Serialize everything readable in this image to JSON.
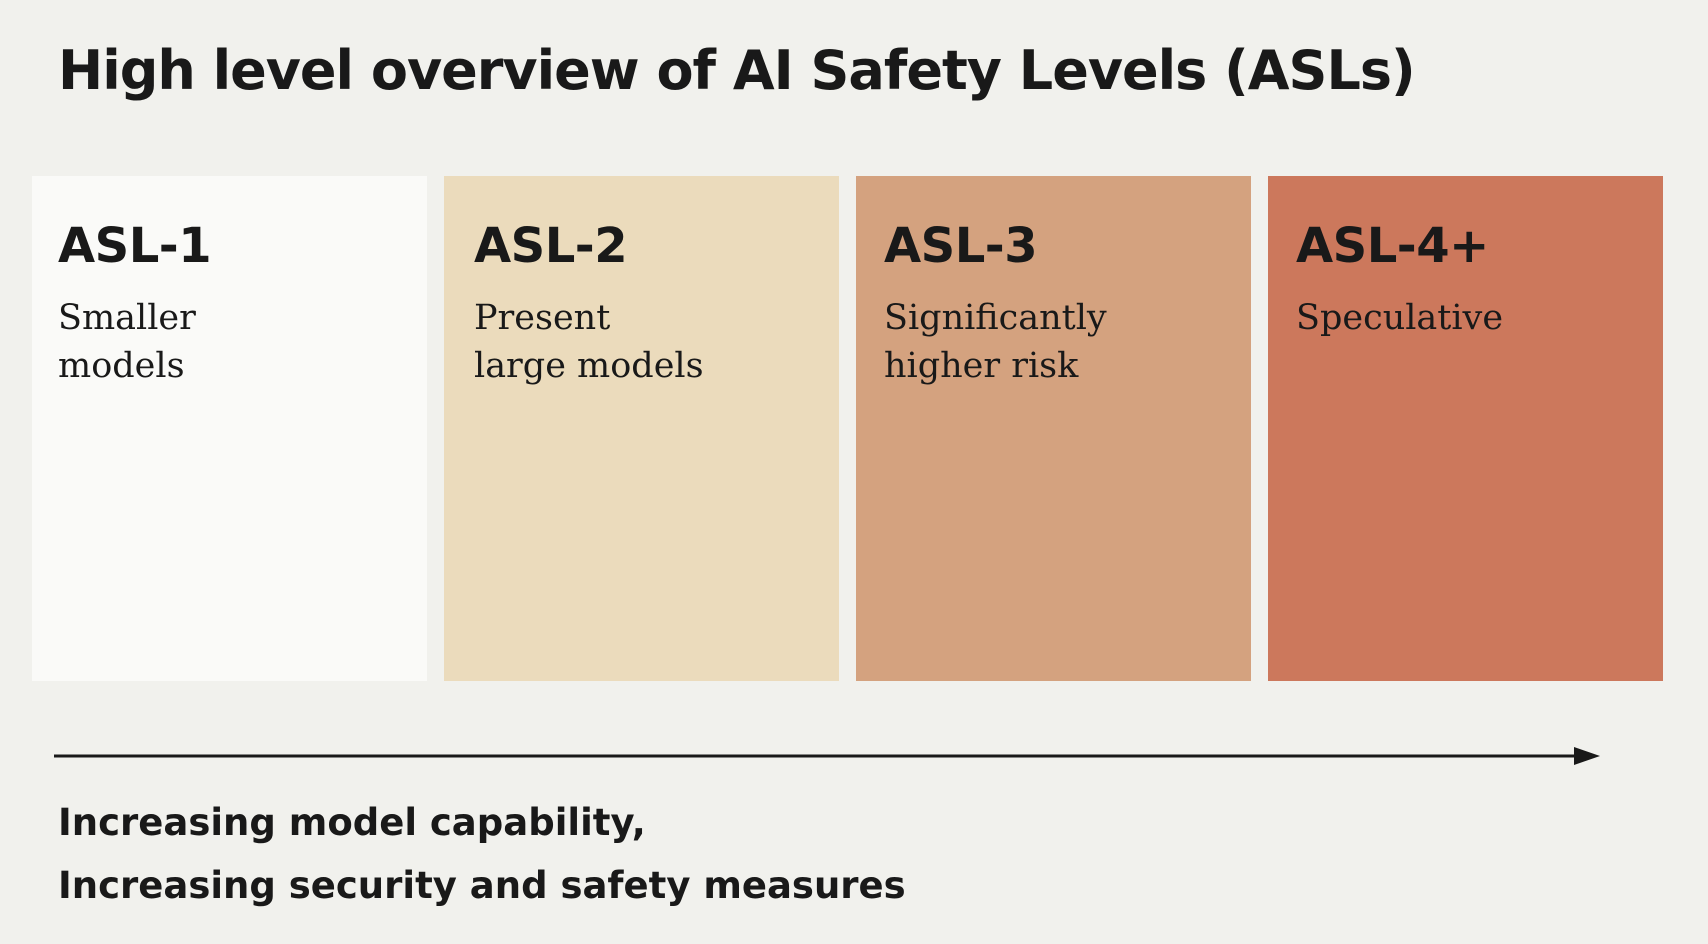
{
  "title": "High level overview of AI Safety Levels (ASLs)",
  "levels": [
    {
      "label": "ASL-1",
      "description": "Smaller\nmodels",
      "color": "#fafaf8"
    },
    {
      "label": "ASL-2",
      "description": "Present\nlarge models",
      "color": "#ebdbbc"
    },
    {
      "label": "ASL-3",
      "description": "Significantly\nhigher risk",
      "color": "#d4a27f"
    },
    {
      "label": "ASL-4+",
      "description": "Speculative",
      "color": "#cc785c"
    }
  ],
  "footer": {
    "line1": "Increasing model capability,",
    "line2": "Increasing security and safety measures"
  }
}
